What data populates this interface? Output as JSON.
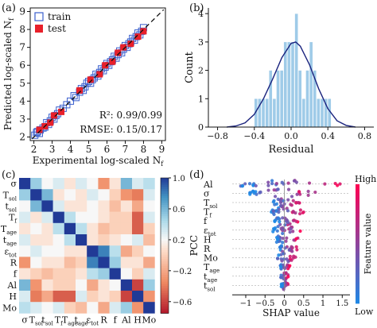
{
  "panels": {
    "a": {
      "label": "(a)",
      "type": "scatter",
      "xlabel": "Experimental log-scaled N",
      "xlabel_sub": "f",
      "ylabel": "Predicted log-scaled N",
      "ylabel_sub": "f",
      "xlim": [
        1.8,
        9.2
      ],
      "ylim": [
        1.8,
        9.2
      ],
      "xticks": [
        "2",
        "3",
        "4",
        "5",
        "6",
        "7",
        "8",
        "9"
      ],
      "yticks": [
        "2",
        "3",
        "4",
        "5",
        "6",
        "7",
        "8",
        "9"
      ],
      "legend": [
        {
          "name": "train",
          "marker": "open-square",
          "color": "#3a5fcd"
        },
        {
          "name": "test",
          "marker": "filled-square",
          "color": "#e8202a"
        }
      ],
      "metrics": [
        "R²: 0.99/0.99",
        "RMSE: 0.15/0.17"
      ],
      "train": [
        [
          2.05,
          2.1
        ],
        [
          2.15,
          2.25
        ],
        [
          2.2,
          2.3
        ],
        [
          2.3,
          2.2
        ],
        [
          2.35,
          2.4
        ],
        [
          2.5,
          2.5
        ],
        [
          2.6,
          2.55
        ],
        [
          2.7,
          2.8
        ],
        [
          2.8,
          2.7
        ],
        [
          2.9,
          2.9
        ],
        [
          3.0,
          3.1
        ],
        [
          3.1,
          3.0
        ],
        [
          3.2,
          3.2
        ],
        [
          3.3,
          3.3
        ],
        [
          3.4,
          3.5
        ],
        [
          3.6,
          3.6
        ],
        [
          3.8,
          3.8
        ],
        [
          4.0,
          4.0
        ],
        [
          4.2,
          4.3
        ],
        [
          4.3,
          4.2
        ],
        [
          4.5,
          4.5
        ],
        [
          4.6,
          4.7
        ],
        [
          4.7,
          4.6
        ],
        [
          4.8,
          4.8
        ],
        [
          4.9,
          5.0
        ],
        [
          5.0,
          5.1
        ],
        [
          5.1,
          5.0
        ],
        [
          5.2,
          5.2
        ],
        [
          5.3,
          5.3
        ],
        [
          5.4,
          5.5
        ],
        [
          5.5,
          5.4
        ],
        [
          5.6,
          5.6
        ],
        [
          5.7,
          5.8
        ],
        [
          5.8,
          5.7
        ],
        [
          5.9,
          5.9
        ],
        [
          6.0,
          6.1
        ],
        [
          6.1,
          6.0
        ],
        [
          6.2,
          6.2
        ],
        [
          6.3,
          6.3
        ],
        [
          6.4,
          6.5
        ],
        [
          6.5,
          6.4
        ],
        [
          6.6,
          6.6
        ],
        [
          6.7,
          6.8
        ],
        [
          6.8,
          6.7
        ],
        [
          6.9,
          6.9
        ],
        [
          7.0,
          7.1
        ],
        [
          7.1,
          7.0
        ],
        [
          7.2,
          7.2
        ],
        [
          7.3,
          7.3
        ],
        [
          7.4,
          7.5
        ],
        [
          7.5,
          7.4
        ],
        [
          7.6,
          7.6
        ],
        [
          7.7,
          7.8
        ],
        [
          7.8,
          7.7
        ],
        [
          7.9,
          7.9
        ],
        [
          8.0,
          8.1
        ]
      ],
      "test": [
        [
          2.3,
          2.4
        ],
        [
          2.6,
          2.6
        ],
        [
          2.9,
          2.8
        ],
        [
          3.1,
          3.2
        ],
        [
          3.5,
          3.4
        ],
        [
          4.5,
          4.6
        ],
        [
          5.1,
          5.2
        ],
        [
          5.6,
          5.5
        ],
        [
          5.9,
          6.0
        ],
        [
          6.3,
          6.2
        ],
        [
          6.6,
          6.7
        ],
        [
          6.9,
          7.0
        ],
        [
          7.3,
          7.2
        ],
        [
          7.7,
          7.6
        ],
        [
          8.0,
          7.9
        ]
      ]
    },
    "b": {
      "label": "(b)",
      "type": "histogram",
      "xlabel": "Residual",
      "ylabel": "Count",
      "xlim": [
        -0.9,
        0.9
      ],
      "ylim": [
        0,
        4.2
      ],
      "xticks": [
        -0.8,
        -0.4,
        0.0,
        0.4,
        0.8
      ],
      "xtick_labels": [
        "−0.8",
        "−0.4",
        "0.0",
        "0.4",
        "0.8"
      ],
      "yticks": [
        "0",
        "1",
        "2",
        "3",
        "4"
      ],
      "bin_edges": [
        -0.4,
        -0.36,
        -0.32,
        -0.28,
        -0.24,
        -0.2,
        -0.16,
        -0.12,
        -0.08,
        -0.04,
        0.0,
        0.04,
        0.08,
        0.12,
        0.16,
        0.2,
        0.24,
        0.28,
        0.32,
        0.36,
        0.4,
        0.44
      ],
      "counts": [
        1,
        1,
        1,
        1,
        2,
        1,
        2,
        2,
        3,
        3,
        3,
        4,
        2,
        1,
        2,
        3,
        2,
        1,
        1,
        1,
        1
      ],
      "kde": [
        [
          -0.7,
          0.0
        ],
        [
          -0.6,
          0.04
        ],
        [
          -0.5,
          0.15
        ],
        [
          -0.4,
          0.45
        ],
        [
          -0.3,
          1.0
        ],
        [
          -0.2,
          1.7
        ],
        [
          -0.1,
          2.45
        ],
        [
          0.0,
          2.95
        ],
        [
          0.05,
          3.0
        ],
        [
          0.1,
          2.85
        ],
        [
          0.2,
          2.2
        ],
        [
          0.3,
          1.35
        ],
        [
          0.4,
          0.65
        ],
        [
          0.5,
          0.22
        ],
        [
          0.6,
          0.06
        ],
        [
          0.7,
          0.0
        ]
      ],
      "color": "#9fcbe8",
      "line_color": "#1a237e"
    },
    "c": {
      "label": "(c)",
      "type": "heatmap",
      "features": [
        "σ",
        "T_sol",
        "t_sol",
        "T_f",
        "T_age",
        "t_age",
        "ε_tot",
        "R",
        "f",
        "Al",
        "H",
        "Mo"
      ],
      "colorbar_label": "PCC",
      "colorbar_ticks": [
        "1.0",
        "0.6",
        "0.2",
        "−0.2",
        "−0.6"
      ],
      "colorbar_values": [
        1.0,
        0.6,
        0.2,
        -0.2,
        -0.6
      ],
      "vmin": -0.75,
      "vmax": 1.0,
      "matrix": [
        [
          1.0,
          0.5,
          0.2,
          0.3,
          0.1,
          0.3,
          0.2,
          -0.3,
          0.1,
          0.6,
          0.3,
          0.4
        ],
        [
          0.5,
          1.0,
          0.6,
          0.1,
          0.2,
          0.1,
          0.3,
          0.2,
          0.0,
          -0.3,
          -0.4,
          0.3
        ],
        [
          0.2,
          0.6,
          1.0,
          0.3,
          0.1,
          0.1,
          0.2,
          0.1,
          -0.1,
          0.1,
          -0.2,
          0.2
        ],
        [
          0.3,
          0.1,
          0.3,
          1.0,
          0.4,
          0.2,
          0.2,
          0.1,
          0.0,
          0.0,
          -0.5,
          0.3
        ],
        [
          0.1,
          0.2,
          0.1,
          0.4,
          1.0,
          0.4,
          0.1,
          -0.1,
          0.0,
          0.0,
          -0.5,
          0.0
        ],
        [
          0.3,
          0.1,
          0.1,
          0.2,
          0.4,
          1.0,
          0.1,
          0.0,
          0.1,
          0.2,
          0.3,
          -0.1
        ],
        [
          0.2,
          0.3,
          0.2,
          0.2,
          0.1,
          0.1,
          1.0,
          0.8,
          0.4,
          -0.2,
          0.0,
          0.2
        ],
        [
          -0.3,
          0.2,
          0.1,
          0.1,
          -0.1,
          0.0,
          0.8,
          1.0,
          0.5,
          0.1,
          0.1,
          -0.2
        ],
        [
          0.1,
          0.0,
          -0.1,
          0.0,
          0.0,
          0.1,
          0.4,
          0.5,
          1.0,
          0.2,
          0.0,
          0.3
        ],
        [
          0.6,
          -0.3,
          0.1,
          0.0,
          0.0,
          0.2,
          -0.2,
          0.1,
          0.2,
          1.0,
          -0.6,
          0.5
        ],
        [
          0.3,
          -0.4,
          -0.2,
          -0.5,
          -0.5,
          0.3,
          0.0,
          0.1,
          0.0,
          -0.6,
          1.0,
          -0.3
        ],
        [
          0.4,
          0.3,
          0.2,
          0.3,
          0.0,
          -0.1,
          0.2,
          -0.2,
          0.3,
          0.5,
          -0.3,
          1.0
        ]
      ]
    },
    "d": {
      "label": "(d)",
      "type": "beeswarm",
      "xlabel": "SHAP value",
      "xlim": [
        -1.35,
        1.7
      ],
      "xticks": [
        -1,
        -0.5,
        0,
        0.5,
        1,
        1.5
      ],
      "xtick_labels": [
        "−1",
        "−0.5",
        "0",
        "0.5",
        "1",
        "1.5"
      ],
      "features": [
        "Al",
        "σ",
        "T_sol",
        "T_f",
        "f",
        "ε_tot",
        "H",
        "R",
        "Mo",
        "T_age",
        "t_age",
        "t_sol"
      ],
      "spread": [
        [
          -1.2,
          1.5
        ],
        [
          -0.9,
          1.1
        ],
        [
          -0.3,
          0.4
        ],
        [
          -0.35,
          0.55
        ],
        [
          -0.25,
          0.35
        ],
        [
          -0.3,
          0.45
        ],
        [
          -0.2,
          0.35
        ],
        [
          -0.15,
          0.35
        ],
        [
          -0.2,
          0.3
        ],
        [
          -0.1,
          0.15
        ],
        [
          -0.1,
          0.12
        ],
        [
          -0.08,
          0.1
        ]
      ],
      "colorbar_label": "Feature value",
      "colorbar_high": "High",
      "colorbar_low": "Low",
      "color_low": "#1e88e5",
      "color_high": "#ff0052"
    }
  }
}
